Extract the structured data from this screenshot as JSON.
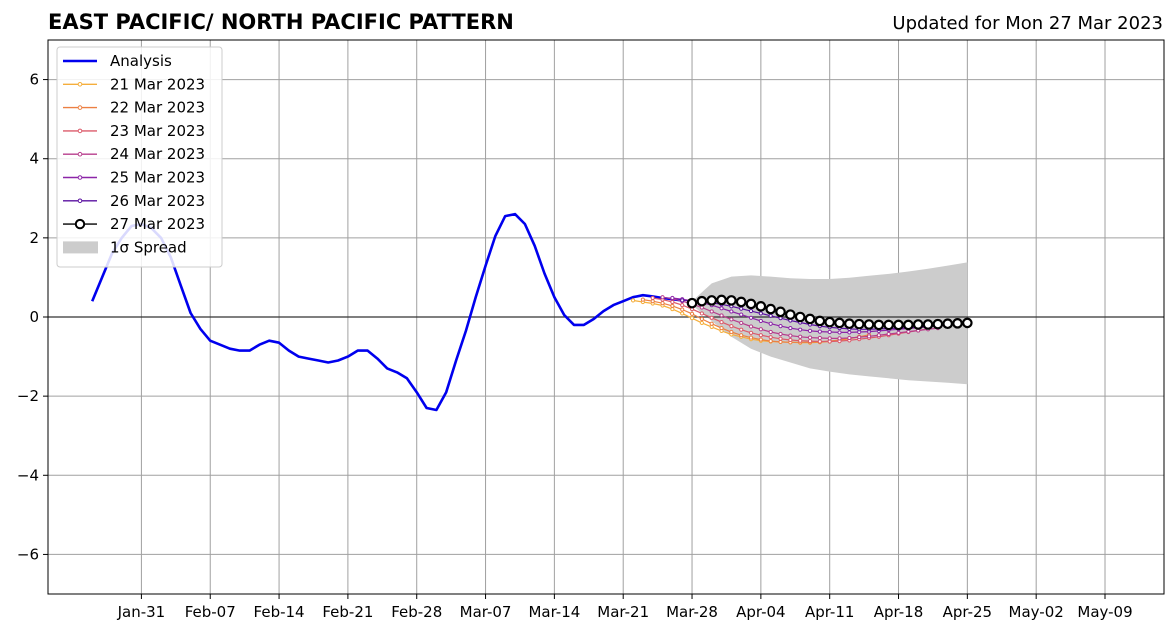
{
  "chart_data": {
    "type": "line",
    "title": "EAST PACIFIC/ NORTH PACIFIC PATTERN",
    "subtitle": "Updated for Mon 27 Mar 2023",
    "xlabel": "",
    "ylabel": "",
    "ylim": [
      -7,
      7
    ],
    "xlim_days": [
      -9.5,
      104
    ],
    "grid": true,
    "legend_position": "top-left",
    "x_ticks": [
      {
        "label": "Jan-31",
        "day": 0
      },
      {
        "label": "Feb-07",
        "day": 7
      },
      {
        "label": "Feb-14",
        "day": 14
      },
      {
        "label": "Feb-21",
        "day": 21
      },
      {
        "label": "Feb-28",
        "day": 28
      },
      {
        "label": "Mar-07",
        "day": 35
      },
      {
        "label": "Mar-14",
        "day": 42
      },
      {
        "label": "Mar-21",
        "day": 49
      },
      {
        "label": "Mar-28",
        "day": 56
      },
      {
        "label": "Apr-04",
        "day": 63
      },
      {
        "label": "Apr-11",
        "day": 70
      },
      {
        "label": "Apr-18",
        "day": 77
      },
      {
        "label": "Apr-25",
        "day": 84
      },
      {
        "label": "May-02",
        "day": 91
      },
      {
        "label": "May-09",
        "day": 98
      }
    ],
    "y_ticks": [
      {
        "label": "−6",
        "value": -6
      },
      {
        "label": "−4",
        "value": -4
      },
      {
        "label": "−2",
        "value": -2
      },
      {
        "label": "0",
        "value": 0
      },
      {
        "label": "2",
        "value": 2
      },
      {
        "label": "4",
        "value": 4
      },
      {
        "label": "6",
        "value": 6
      }
    ],
    "analysis": {
      "name": "Analysis",
      "color": "#0000ee",
      "x": [
        -5,
        -4,
        -3,
        -2,
        -1,
        0,
        1,
        2,
        3,
        4,
        5,
        6,
        7,
        8,
        9,
        10,
        11,
        12,
        13,
        14,
        15,
        16,
        17,
        18,
        19,
        20,
        21,
        22,
        23,
        24,
        25,
        26,
        27,
        28,
        29,
        30,
        31,
        32,
        33,
        34,
        35,
        36,
        37,
        38,
        39,
        40,
        41,
        42,
        43,
        44,
        45,
        46,
        47,
        48,
        49,
        50,
        51,
        52,
        53,
        54,
        55
      ],
      "y": [
        0.4,
        1.0,
        1.6,
        2.0,
        2.3,
        2.35,
        2.25,
        2.0,
        1.5,
        0.8,
        0.1,
        -0.3,
        -0.6,
        -0.7,
        -0.8,
        -0.85,
        -0.85,
        -0.7,
        -0.6,
        -0.65,
        -0.85,
        -1.0,
        -1.05,
        -1.1,
        -1.15,
        -1.1,
        -1.0,
        -0.85,
        -0.85,
        -1.05,
        -1.3,
        -1.4,
        -1.55,
        -1.9,
        -2.3,
        -2.35,
        -1.9,
        -1.1,
        -0.35,
        0.5,
        1.3,
        2.05,
        2.55,
        2.6,
        2.35,
        1.8,
        1.1,
        0.5,
        0.05,
        -0.2,
        -0.2,
        -0.05,
        0.15,
        0.3,
        0.4,
        0.5,
        0.55,
        0.52,
        0.48,
        0.45,
        0.42
      ]
    },
    "forecasts": [
      {
        "name": "21 Mar 2023",
        "color": "#f5ae3b",
        "start": 50,
        "end": 73,
        "y": [
          0.42,
          0.38,
          0.34,
          0.29,
          0.2,
          0.09,
          -0.03,
          -0.15,
          -0.25,
          -0.35,
          -0.44,
          -0.5,
          -0.56,
          -0.6,
          -0.62,
          -0.63,
          -0.64,
          -0.65,
          -0.65,
          -0.64,
          -0.62,
          -0.59,
          -0.55,
          -0.5
        ]
      },
      {
        "name": "22 Mar 2023",
        "color": "#ec8043",
        "start": 51,
        "end": 74,
        "y": [
          0.44,
          0.4,
          0.35,
          0.28,
          0.19,
          0.08,
          -0.05,
          -0.17,
          -0.28,
          -0.38,
          -0.46,
          -0.52,
          -0.57,
          -0.61,
          -0.63,
          -0.64,
          -0.64,
          -0.64,
          -0.63,
          -0.61,
          -0.58,
          -0.54,
          -0.5,
          -0.45
        ]
      },
      {
        "name": "23 Mar 2023",
        "color": "#dc5a6a",
        "start": 52,
        "end": 80,
        "y": [
          0.48,
          0.44,
          0.38,
          0.3,
          0.2,
          0.09,
          -0.02,
          -0.13,
          -0.23,
          -0.32,
          -0.4,
          -0.46,
          -0.51,
          -0.55,
          -0.58,
          -0.6,
          -0.61,
          -0.62,
          -0.62,
          -0.61,
          -0.59,
          -0.56,
          -0.53,
          -0.5,
          -0.46,
          -0.42,
          -0.38,
          -0.34,
          -0.3
        ]
      },
      {
        "name": "24 Mar 2023",
        "color": "#b73d8c",
        "start": 53,
        "end": 81,
        "y": [
          0.5,
          0.46,
          0.4,
          0.33,
          0.24,
          0.14,
          0.04,
          -0.06,
          -0.15,
          -0.24,
          -0.31,
          -0.38,
          -0.43,
          -0.47,
          -0.5,
          -0.52,
          -0.53,
          -0.54,
          -0.54,
          -0.53,
          -0.51,
          -0.49,
          -0.46,
          -0.43,
          -0.4,
          -0.37,
          -0.34,
          -0.31,
          -0.28
        ]
      },
      {
        "name": "25 Mar 2023",
        "color": "#8c25a8",
        "start": 54,
        "end": 82,
        "y": [
          0.48,
          0.45,
          0.41,
          0.36,
          0.3,
          0.22,
          0.14,
          0.06,
          -0.02,
          -0.1,
          -0.17,
          -0.23,
          -0.28,
          -0.32,
          -0.35,
          -0.37,
          -0.38,
          -0.39,
          -0.39,
          -0.38,
          -0.37,
          -0.35,
          -0.33,
          -0.31,
          -0.29,
          -0.27,
          -0.25,
          -0.23,
          -0.21
        ]
      },
      {
        "name": "26 Mar 2023",
        "color": "#5a10a0",
        "start": 55,
        "end": 83,
        "y": [
          0.42,
          0.41,
          0.39,
          0.36,
          0.32,
          0.27,
          0.21,
          0.15,
          0.09,
          0.03,
          -0.03,
          -0.09,
          -0.14,
          -0.19,
          -0.23,
          -0.26,
          -0.28,
          -0.3,
          -0.31,
          -0.31,
          -0.3,
          -0.29,
          -0.28,
          -0.27,
          -0.25,
          -0.23,
          -0.21,
          -0.19,
          -0.17
        ]
      },
      {
        "name": "27 Mar 2023",
        "color": "#000000",
        "start": 56,
        "end": 84,
        "y": [
          0.35,
          0.4,
          0.42,
          0.43,
          0.42,
          0.38,
          0.33,
          0.27,
          0.2,
          0.13,
          0.06,
          0.0,
          -0.05,
          -0.1,
          -0.13,
          -0.15,
          -0.17,
          -0.18,
          -0.19,
          -0.2,
          -0.2,
          -0.2,
          -0.2,
          -0.19,
          -0.19,
          -0.18,
          -0.17,
          -0.16,
          -0.15
        ]
      }
    ],
    "spread": {
      "name": "1σ Spread",
      "color": "#cccccc",
      "x": [
        56,
        58,
        60,
        62,
        64,
        66,
        68,
        70,
        72,
        74,
        76,
        78,
        80,
        82,
        84
      ],
      "upper": [
        0.4,
        0.85,
        1.02,
        1.05,
        1.02,
        0.98,
        0.96,
        0.96,
        0.99,
        1.04,
        1.09,
        1.15,
        1.22,
        1.3,
        1.38
      ],
      "lower": [
        0.3,
        -0.1,
        -0.5,
        -0.8,
        -1.0,
        -1.15,
        -1.3,
        -1.38,
        -1.45,
        -1.5,
        -1.55,
        -1.6,
        -1.63,
        -1.66,
        -1.7
      ]
    }
  }
}
